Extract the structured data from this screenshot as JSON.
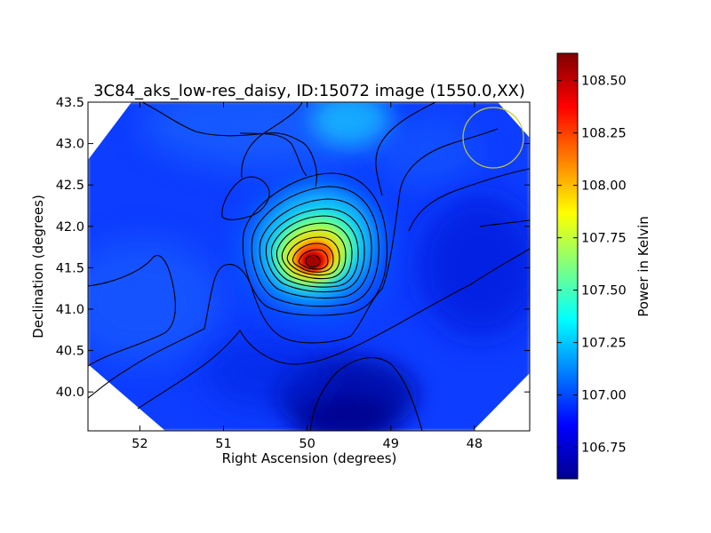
{
  "chart_data": {
    "type": "heatmap",
    "title": "3C84_aks_low-res_daisy, ID:15072 image (1550.0,XX)",
    "xlabel": "Right Ascension (degrees)",
    "ylabel": "Declination (degrees)",
    "x_axis_direction": "decreasing to the right",
    "xlim": [
      52.62,
      47.34
    ],
    "ylim": [
      39.53,
      43.5
    ],
    "x_ticks": [
      52,
      51,
      50,
      49,
      48
    ],
    "x_tick_labels": [
      "52",
      "51",
      "50",
      "49",
      "48"
    ],
    "y_ticks": [
      40.0,
      40.5,
      41.0,
      41.5,
      42.0,
      42.5,
      43.0,
      43.5
    ],
    "y_tick_labels": [
      "40.0",
      "40.5",
      "41.0",
      "41.5",
      "42.0",
      "42.5",
      "43.0",
      "43.5"
    ],
    "colormap": "jet",
    "colorbar": {
      "label": "Power in Kelvin",
      "range": [
        106.6,
        108.63
      ],
      "ticks": [
        106.75,
        107.0,
        107.25,
        107.5,
        107.75,
        108.0,
        108.25,
        108.5
      ],
      "tick_labels": [
        "106.75",
        "107.00",
        "107.25",
        "107.50",
        "107.75",
        "108.00",
        "108.25",
        "108.50"
      ]
    },
    "peak": {
      "ra": 49.93,
      "dec": 41.57,
      "value": 108.6
    },
    "secondary_bright_region": {
      "ra": 49.7,
      "dec": 43.3,
      "value": 107.2
    },
    "min_region": {
      "ra": 49.0,
      "dec": 39.7,
      "value": 106.62
    },
    "background_level": 106.95,
    "contours": "black, evenly spaced levels around the central source",
    "beam_circle": {
      "ra": 47.71,
      "dec": 43.06,
      "radius_deg": 0.36,
      "color": "#c8c832"
    }
  }
}
